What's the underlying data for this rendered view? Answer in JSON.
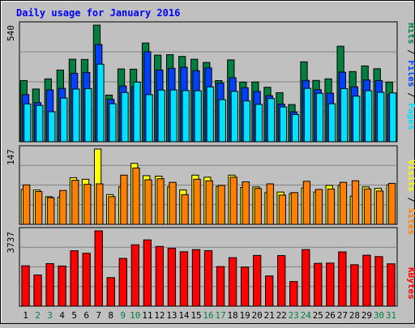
{
  "chart_data": {
    "title": "Daily usage for January 2016",
    "days": [
      "1",
      "2",
      "3",
      "4",
      "5",
      "6",
      "7",
      "8",
      "9",
      "10",
      "11",
      "12",
      "13",
      "14",
      "15",
      "16",
      "17",
      "18",
      "19",
      "20",
      "21",
      "22",
      "23",
      "24",
      "25",
      "26",
      "27",
      "28",
      "29",
      "30",
      "31"
    ],
    "weekend_days": [
      "2",
      "3",
      "9",
      "10",
      "16",
      "17",
      "23",
      "24",
      "30",
      "31"
    ],
    "panels": [
      {
        "type": "bar",
        "max_label": "540",
        "ymax": 540,
        "series": [
          {
            "name": "Hits",
            "color": "#008040",
            "values": [
              283,
              244,
              291,
              332,
              382,
              381,
              540,
              216,
              337,
              336,
              457,
              401,
              403,
              395,
              382,
              367,
              283,
              379,
              276,
              276,
              252,
              227,
              172,
              370,
              284,
              291,
              442,
              325,
              351,
              338,
              276
            ]
          },
          {
            "name": "Files",
            "color": "#0040ff",
            "values": [
              218,
              181,
              240,
              247,
              317,
              321,
              450,
              196,
              258,
              255,
              417,
              332,
              340,
              345,
              329,
              342,
              272,
              296,
              250,
              233,
              213,
              174,
              138,
              284,
              241,
              225,
              322,
              254,
              286,
              283,
              218
            ]
          },
          {
            "name": "Pages",
            "color": "#00e0ff",
            "values": [
              175,
              168,
              139,
              202,
              244,
              246,
              359,
              176,
              228,
              276,
              218,
              239,
              240,
              237,
              236,
              254,
              195,
              233,
              189,
              173,
              200,
              161,
              126,
              247,
              224,
              176,
              246,
              211,
              236,
              229,
              226
            ]
          }
        ]
      },
      {
        "type": "bar",
        "max_label": "147",
        "ymax": 147,
        "series": [
          {
            "name": "Visits",
            "color": "#ffff00",
            "values": [
              68,
              67,
              54,
              53,
              91,
              88,
              147,
              58,
              73,
              119,
              95,
              94,
              73,
              67,
              96,
              92,
              74,
              96,
              72,
              73,
              62,
              63,
              60,
              71,
              63,
              76,
              76,
              55,
              73,
              70,
              77
            ]
          },
          {
            "name": "Sites",
            "color": "#ff8000",
            "values": [
              77,
              64,
              52,
              66,
              86,
              78,
              79,
              54,
              96,
              110,
              87,
              89,
              82,
              58,
              88,
              85,
              76,
              92,
              83,
              70,
              79,
              57,
              62,
              84,
              68,
              69,
              82,
              85,
              69,
              65,
              80
            ]
          }
        ],
        "legend_order": [
          "Sites",
          "Visits"
        ]
      },
      {
        "type": "bar",
        "max_label": "3737",
        "ymax": 3737,
        "series": [
          {
            "name": "KBytes",
            "color": "#ff0000",
            "values": [
              2001,
              1543,
              2109,
              1992,
              2747,
              2624,
              3737,
              1415,
              2370,
              3044,
              3287,
              2963,
              2870,
              2700,
              2804,
              2753,
              1963,
              2405,
              1936,
              2515,
              1497,
              2509,
              1219,
              2805,
              2124,
              2136,
              2692,
              2056,
              2527,
              2458,
              2099
            ]
          }
        ]
      }
    ]
  },
  "colors": {
    "background": "#c0c0c0",
    "title": "#0000ff",
    "weekday": "#000000",
    "weekend": "#008040",
    "grid": "#808080",
    "hits": "#008040",
    "files": "#0040ff",
    "pages": "#00e0ff",
    "visits": "#ffff00",
    "sites": "#ff8000",
    "kbytes": "#ff0000"
  }
}
